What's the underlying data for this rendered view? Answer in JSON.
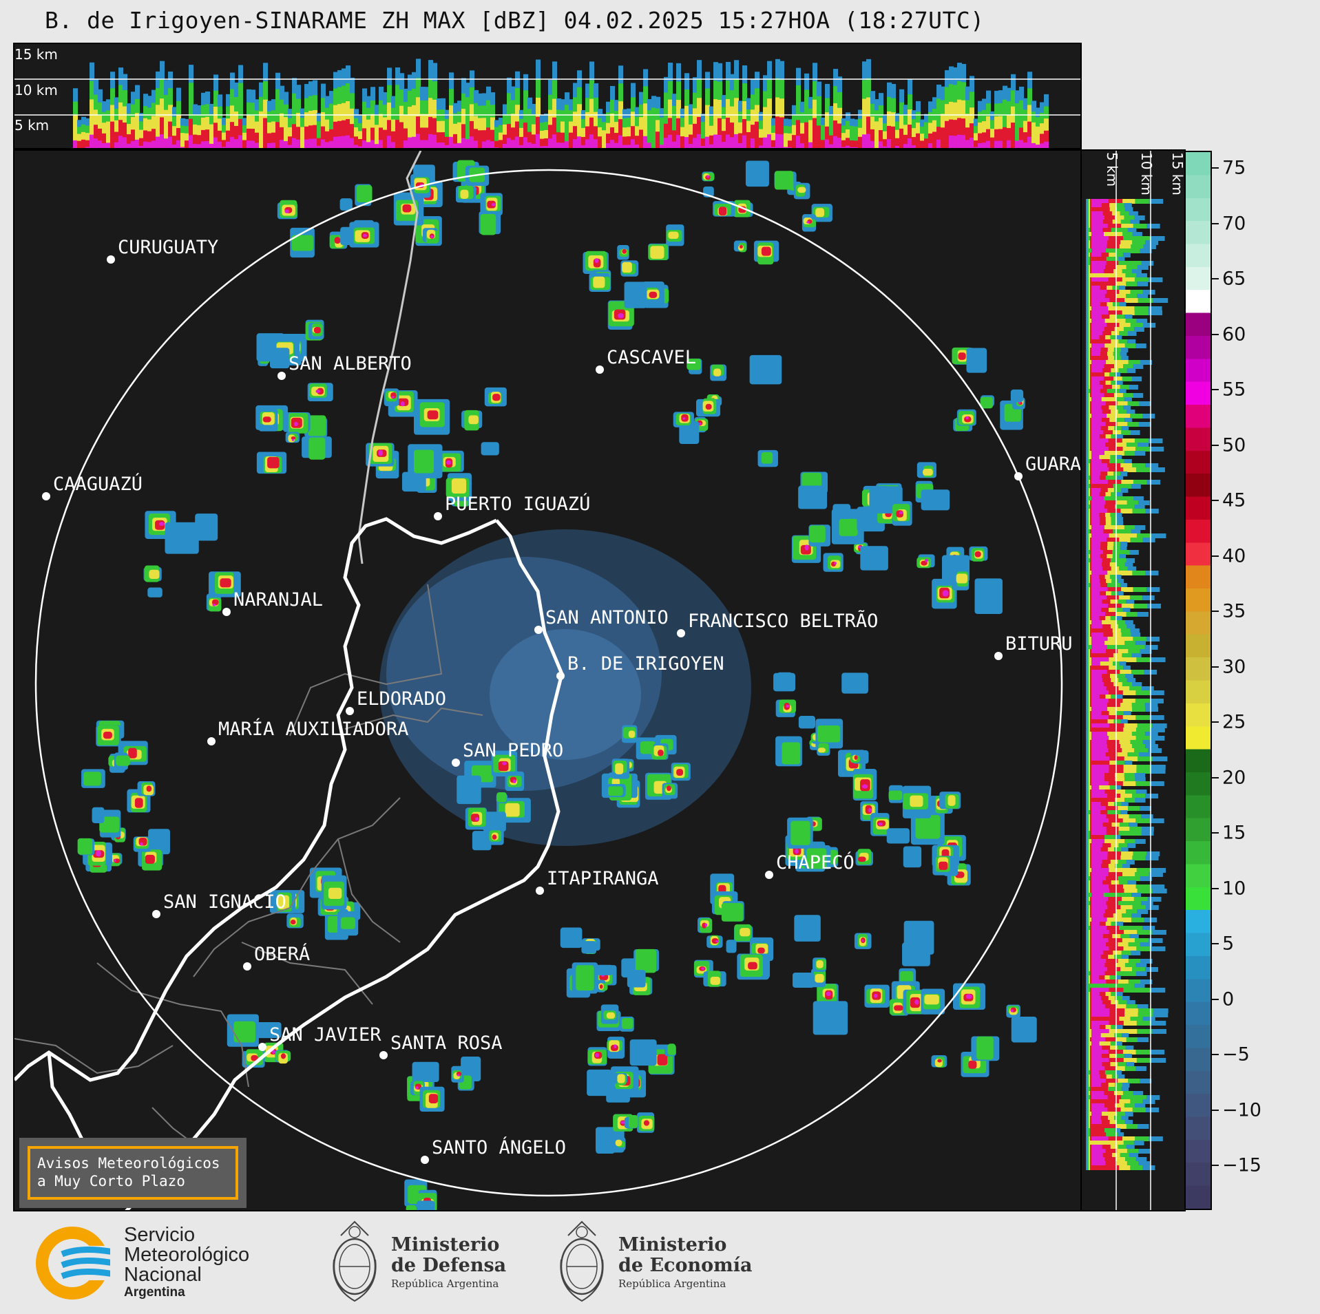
{
  "title": "B. de Irigoyen-SINARAME ZH MAX [dBZ] 04.02.2025 15:27HOA (18:27UTC)",
  "height_labels_top": [
    "15 km",
    "10 km",
    "5 km"
  ],
  "height_labels_side": [
    "5 km",
    "10 km",
    "15 km"
  ],
  "colorbar": {
    "ticks": [
      "75",
      "70",
      "65",
      "60",
      "55",
      "50",
      "45",
      "40",
      "35",
      "30",
      "25",
      "20",
      "15",
      "10",
      "5",
      "0",
      "−5",
      "−10",
      "−15"
    ]
  },
  "cities": [
    {
      "name": "CURUGUATY"
    },
    {
      "name": "SAN ALBERTO"
    },
    {
      "name": "CASCAVEL"
    },
    {
      "name": "CAAGUAZÚ"
    },
    {
      "name": "GUARA"
    },
    {
      "name": "PUERTO IGUAZÚ"
    },
    {
      "name": "NARANJAL"
    },
    {
      "name": "SAN ANTONIO"
    },
    {
      "name": "FRANCISCO BELTRÃO"
    },
    {
      "name": "BITURU"
    },
    {
      "name": "B. DE IRIGOYEN"
    },
    {
      "name": "ELDORADO"
    },
    {
      "name": "MARÍA AUXILIADORA"
    },
    {
      "name": "SAN PEDRO"
    },
    {
      "name": "CHAPECÓ"
    },
    {
      "name": "ITAPIRANGA"
    },
    {
      "name": "SAN IGNACIO"
    },
    {
      "name": "OBERÁ"
    },
    {
      "name": "SAN JAVIER"
    },
    {
      "name": "SANTA ROSA"
    },
    {
      "name": "SANTO ÁNGELO"
    }
  ],
  "warning": {
    "line1": "Avisos Meteorológicos",
    "line2": "a Muy Corto Plazo"
  },
  "logos": {
    "smn": {
      "line1": "Servicio",
      "line2": "Meteorológico",
      "line3": "Nacional",
      "line4": "Argentina"
    },
    "defensa": {
      "line1": "Ministerio",
      "line2": "de Defensa",
      "line3": "República Argentina"
    },
    "economia": {
      "line1": "Ministerio",
      "line2": "de Economía",
      "line3": "República Argentina"
    }
  },
  "colors": {
    "accent_orange": "#f5a400",
    "smn_blue": "#1ea0dc",
    "panel_bg": "#1a1a1a"
  }
}
